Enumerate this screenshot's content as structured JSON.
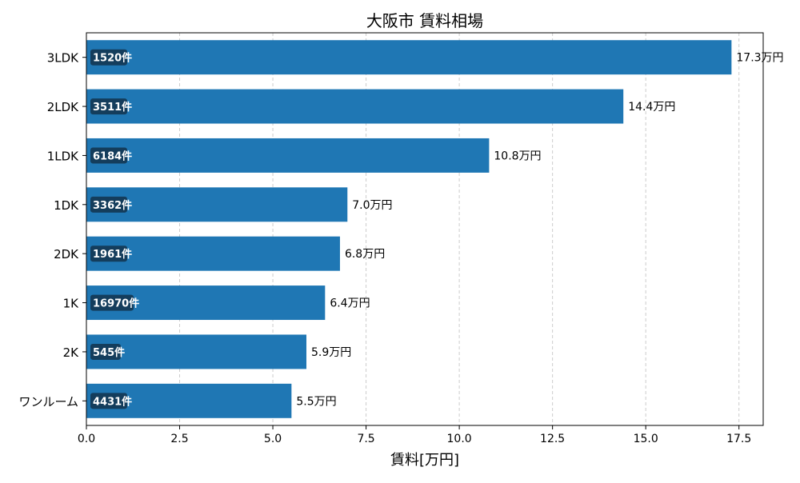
{
  "chart_data": {
    "type": "bar",
    "orientation": "horizontal",
    "title": "大阪市 賃料相場",
    "xlabel": "賃料[万円]",
    "ylabel": "",
    "xlim": [
      0,
      18.15
    ],
    "xticks": [
      0.0,
      2.5,
      5.0,
      7.5,
      10.0,
      12.5,
      15.0,
      17.5
    ],
    "xtick_labels": [
      "0.0",
      "2.5",
      "5.0",
      "7.5",
      "10.0",
      "12.5",
      "15.0",
      "17.5"
    ],
    "grid": "x-dashed",
    "categories": [
      "3LDK",
      "2LDK",
      "1LDK",
      "1DK",
      "2DK",
      "1K",
      "2K",
      "ワンルーム"
    ],
    "values": [
      17.3,
      14.4,
      10.8,
      7.0,
      6.8,
      6.4,
      5.9,
      5.5
    ],
    "value_labels": [
      "17.3万円",
      "14.4万円",
      "10.8万円",
      "7.0万円",
      "6.8万円",
      "6.4万円",
      "5.9万円",
      "5.5万円"
    ],
    "counts": [
      "1520件",
      "3511件",
      "6184件",
      "3362件",
      "1961件",
      "16970件",
      "545件",
      "4431件"
    ],
    "colors": {
      "bar": "#1f77b4",
      "count_badge": "#143d5c",
      "grid": "#cccccc"
    }
  }
}
